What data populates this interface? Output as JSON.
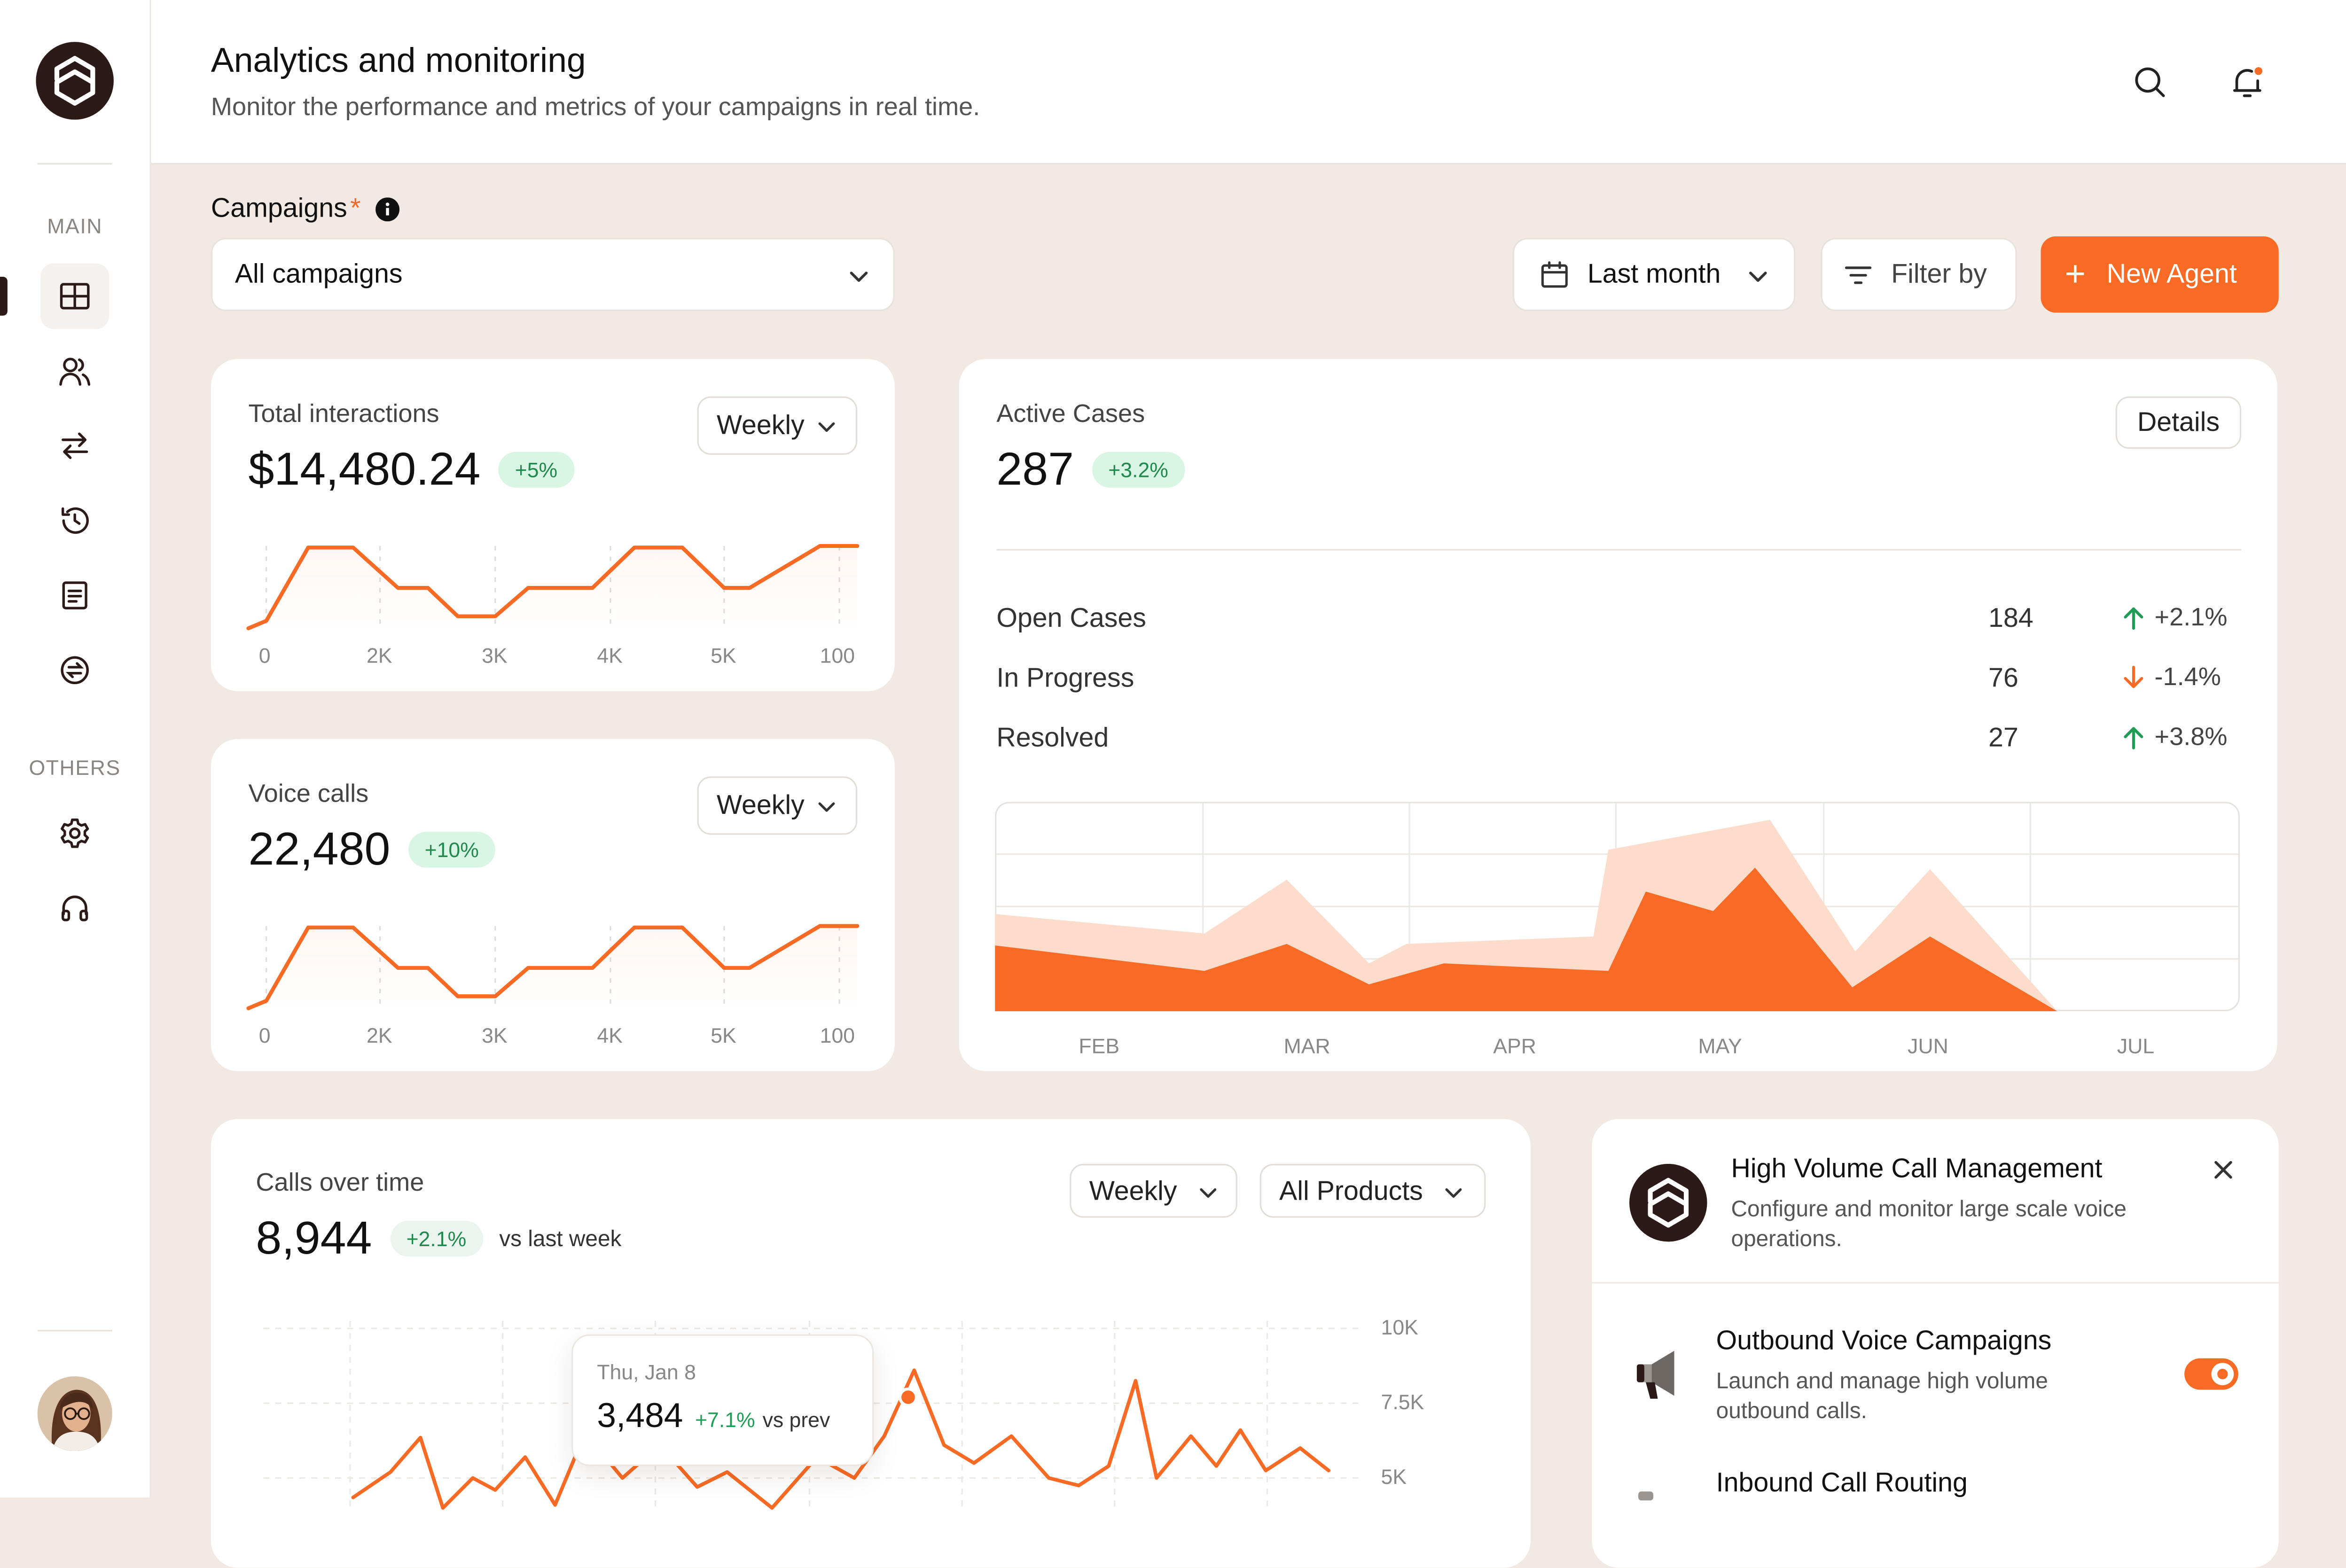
{
  "header": {
    "title": "Analytics and monitoring",
    "subtitle": "Monitor the performance and metrics of your campaigns in real time."
  },
  "sidebar": {
    "main_label": "MAIN",
    "others_label": "OTHERS",
    "main_items": [
      "dashboard-icon",
      "users-icon",
      "transfer-icon",
      "history-icon",
      "document-icon",
      "billing-icon"
    ],
    "other_items": [
      "settings-icon",
      "headphones-icon"
    ]
  },
  "filters": {
    "campaigns_label": "Campaigns",
    "required_mark": "*",
    "campaign_value": "All campaigns",
    "date_range": "Last month",
    "filter_label": "Filter by",
    "new_agent_label": "New Agent",
    "new_agent_plus": "+"
  },
  "total_interactions": {
    "title": "Total interactions",
    "value": "$14,480.24",
    "change": "+5%",
    "period": "Weekly",
    "x_ticks": [
      "0",
      "2K",
      "3K",
      "4K",
      "5K",
      "100"
    ]
  },
  "voice_calls": {
    "title": "Voice calls",
    "value": "22,480",
    "change": "+10%",
    "period": "Weekly",
    "x_ticks": [
      "0",
      "2K",
      "3K",
      "4K",
      "5K",
      "100"
    ]
  },
  "active_cases": {
    "title": "Active Cases",
    "value": "287",
    "change": "+3.2%",
    "details_label": "Details",
    "rows": [
      {
        "label": "Open Cases",
        "value": "184",
        "change": "+2.1%",
        "direction": "up"
      },
      {
        "label": "In Progress",
        "value": "76",
        "change": "-1.4%",
        "direction": "down"
      },
      {
        "label": "Resolved",
        "value": "27",
        "change": "+3.8%",
        "direction": "up"
      }
    ],
    "months": [
      "FEB",
      "MAR",
      "APR",
      "MAY",
      "JUN",
      "JUL"
    ]
  },
  "calls_over_time": {
    "title": "Calls over time",
    "value": "8,944",
    "change": "+2.1%",
    "change_suffix": "vs last week",
    "period": "Weekly",
    "product_filter": "All Products",
    "y_ticks": [
      "10K",
      "7.5K",
      "5K"
    ],
    "tooltip": {
      "date": "Thu, Jan 8",
      "value": "3,484",
      "change": "+7.1%",
      "suffix": "vs prev"
    }
  },
  "call_management": {
    "title": "High Volume Call Management",
    "description": "Configure and monitor large scale voice operations.",
    "items": [
      {
        "title": "Outbound Voice Campaigns",
        "description": "Launch and manage high volume outbound calls.",
        "enabled": true
      },
      {
        "title": "Inbound Call Routing"
      }
    ]
  },
  "colors": {
    "accent": "#F96B24",
    "brand_dark": "#2B1A17",
    "positive": "#1F8A4C",
    "page_bg": "#F2E9E2"
  }
}
